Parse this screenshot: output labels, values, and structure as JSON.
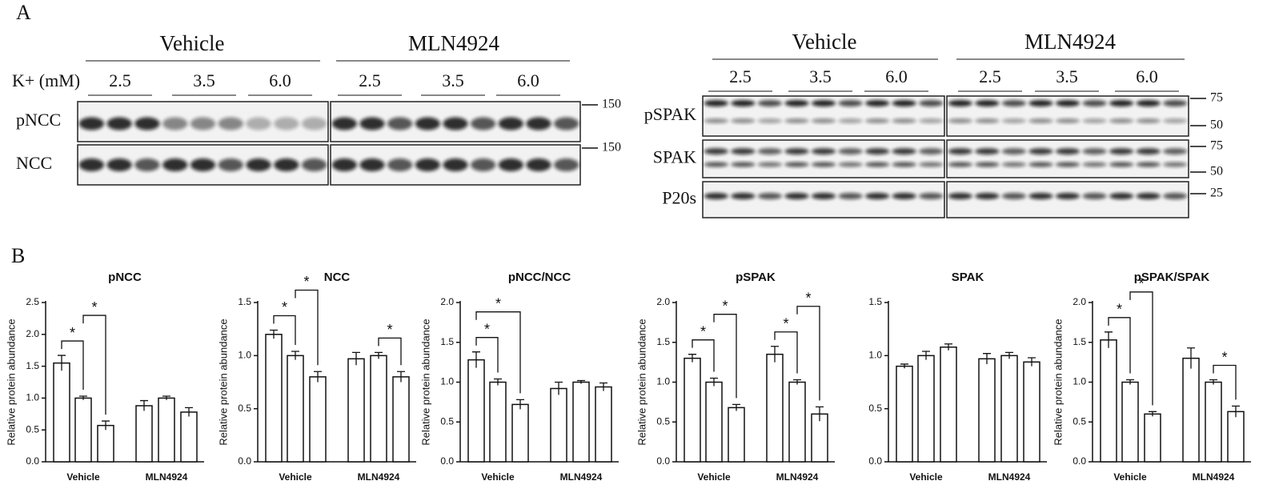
{
  "panel_a": {
    "label": "A",
    "left": {
      "groups": [
        "Vehicle",
        "MLN4924"
      ],
      "k_label": "K+ (mM)",
      "concentrations": [
        "2.5",
        "3.5",
        "6.0"
      ],
      "rows": [
        {
          "name": "pNCC",
          "markers": [
            "150"
          ]
        },
        {
          "name": "NCC",
          "markers": [
            "150"
          ]
        }
      ]
    },
    "right": {
      "groups": [
        "Vehicle",
        "MLN4924"
      ],
      "concentrations": [
        "2.5",
        "3.5",
        "6.0"
      ],
      "rows": [
        {
          "name": "pSPAK",
          "markers": [
            "75",
            "50"
          ]
        },
        {
          "name": "SPAK",
          "markers": [
            "75",
            "50"
          ]
        },
        {
          "name": "P20s",
          "markers": [
            "25"
          ]
        }
      ]
    }
  },
  "panel_b_label": "B",
  "chart_data": [
    {
      "type": "bar",
      "title": "pNCC",
      "y_label": "Relative protein abundance",
      "categories": [
        null,
        "Vehicle",
        null,
        null,
        "MLN4924",
        null
      ],
      "values": [
        1.55,
        1.0,
        0.57,
        0.88,
        1.0,
        0.78
      ],
      "errors": [
        0.12,
        0.03,
        0.07,
        0.08,
        0.03,
        0.07
      ],
      "ylim": [
        0,
        2.5
      ],
      "yticks": [
        {
          "value": 0,
          "label": "0.0"
        },
        0.5,
        {
          "value": 1,
          "label": "1.0"
        },
        1.5,
        {
          "value": 2,
          "label": "2.0"
        },
        2.5
      ],
      "significance": [
        {
          "label": "*",
          "bars": [
            0,
            1
          ]
        },
        {
          "label": "*",
          "bars": [
            1,
            2
          ]
        }
      ]
    },
    {
      "type": "bar",
      "title": "NCC",
      "y_label": "Relative protein abundance",
      "categories": [
        null,
        "Vehicle",
        null,
        null,
        "MLN4924",
        null
      ],
      "values": [
        1.2,
        1.0,
        0.8,
        0.97,
        1.0,
        0.8
      ],
      "errors": [
        0.04,
        0.04,
        0.05,
        0.06,
        0.03,
        0.05
      ],
      "ylim": [
        0,
        1.5
      ],
      "yticks": [
        {
          "value": 0,
          "label": "0.0"
        },
        0.5,
        {
          "value": 1,
          "label": "1.0"
        },
        1.5
      ],
      "significance": [
        {
          "label": "*",
          "bars": [
            0,
            1
          ]
        },
        {
          "label": "*",
          "bars": [
            1,
            2
          ]
        },
        {
          "label": "*",
          "bars": [
            4,
            5
          ]
        }
      ]
    },
    {
      "type": "bar",
      "title": "pNCC/NCC",
      "y_label": "Relative protein abundance",
      "categories": [
        null,
        "Vehicle",
        null,
        null,
        "MLN4924",
        null
      ],
      "values": [
        1.28,
        1.0,
        0.72,
        0.92,
        1.0,
        0.94
      ],
      "errors": [
        0.1,
        0.04,
        0.06,
        0.08,
        0.02,
        0.05
      ],
      "ylim": [
        0,
        2.0
      ],
      "yticks": [
        {
          "value": 0,
          "label": "0.0"
        },
        0.5,
        {
          "value": 1,
          "label": "1.0"
        },
        1.5,
        {
          "value": 2,
          "label": "2.0"
        }
      ],
      "significance": [
        {
          "label": "*",
          "bars": [
            0,
            1
          ]
        },
        {
          "label": "*",
          "bars": [
            0,
            2
          ]
        }
      ]
    },
    {
      "type": "bar",
      "title": "pSPAK",
      "y_label": "Relative protein abundance",
      "categories": [
        null,
        "Vehicle",
        null,
        null,
        "MLN4924",
        null
      ],
      "values": [
        1.3,
        1.0,
        0.68,
        1.35,
        1.0,
        0.6
      ],
      "errors": [
        0.05,
        0.05,
        0.04,
        0.1,
        0.03,
        0.09
      ],
      "ylim": [
        0,
        2.0
      ],
      "yticks": [
        {
          "value": 0,
          "label": "0.0"
        },
        0.5,
        {
          "value": 1,
          "label": "1.0"
        },
        1.5,
        {
          "value": 2,
          "label": "2.0"
        }
      ],
      "significance": [
        {
          "label": "*",
          "bars": [
            0,
            1
          ]
        },
        {
          "label": "*",
          "bars": [
            1,
            2
          ]
        },
        {
          "label": "*",
          "bars": [
            3,
            4
          ]
        },
        {
          "label": "*",
          "bars": [
            4,
            5
          ]
        }
      ]
    },
    {
      "type": "bar",
      "title": "SPAK",
      "categories": [
        null,
        "Vehicle",
        null,
        null,
        "MLN4924",
        null
      ],
      "values": [
        0.9,
        1.0,
        1.08,
        0.97,
        1.0,
        0.94
      ],
      "errors": [
        0.02,
        0.04,
        0.03,
        0.05,
        0.03,
        0.04
      ],
      "ylim": [
        0,
        1.5
      ],
      "yticks": [
        {
          "value": 0,
          "label": "0.0"
        },
        0.5,
        {
          "value": 1,
          "label": "1.0"
        },
        1.5
      ],
      "significance": []
    },
    {
      "type": "bar",
      "title": "pSPAK/SPAK",
      "y_label": "Relative protein abundance",
      "categories": [
        null,
        "Vehicle",
        null,
        null,
        "MLN4924",
        null
      ],
      "values": [
        1.53,
        1.0,
        0.6,
        1.3,
        1.0,
        0.63
      ],
      "errors": [
        0.1,
        0.03,
        0.03,
        0.13,
        0.03,
        0.07
      ],
      "ylim": [
        0,
        2.0
      ],
      "yticks": [
        {
          "value": 0,
          "label": "0.0"
        },
        0.5,
        {
          "value": 1,
          "label": "1.0"
        },
        1.5,
        {
          "value": 2,
          "label": "2.0"
        }
      ],
      "significance": [
        {
          "label": "*",
          "bars": [
            0,
            1
          ]
        },
        {
          "label": "*",
          "bars": [
            1,
            2
          ]
        },
        {
          "label": "*",
          "bars": [
            4,
            5
          ]
        }
      ]
    }
  ]
}
